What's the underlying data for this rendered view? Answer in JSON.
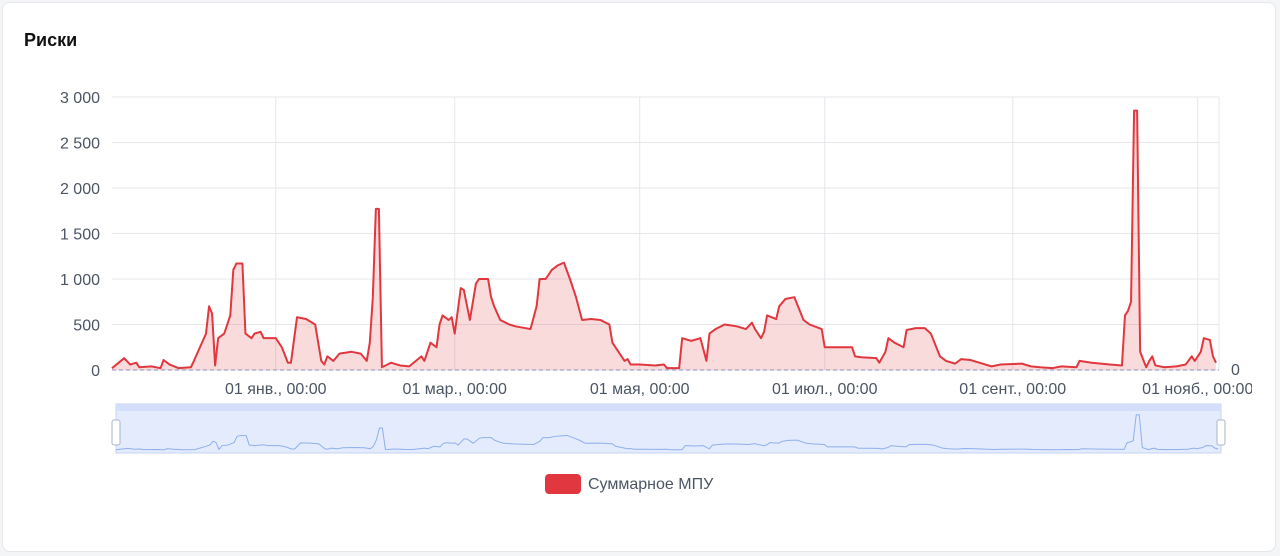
{
  "title": "Риски",
  "chart_data": {
    "type": "line",
    "series": [
      {
        "name": "Суммарное МПУ",
        "color": "#e0383e",
        "x": [
          0,
          4,
          6,
          8,
          9,
          13,
          16,
          17,
          19,
          22,
          26,
          27,
          29,
          31,
          32,
          33,
          34,
          35,
          37,
          39,
          40,
          41,
          43,
          44,
          46,
          47,
          49,
          50,
          54,
          56,
          58,
          59,
          61,
          64,
          67,
          69,
          70,
          71,
          73,
          75,
          79,
          82,
          84,
          85,
          86,
          87,
          88,
          89,
          92,
          95,
          98,
          102,
          103,
          105,
          107,
          108,
          109,
          111,
          112,
          113,
          115,
          116,
          118,
          120,
          121,
          124,
          125,
          126,
          128,
          131,
          133,
          138,
          140,
          141,
          143,
          145,
          147,
          149,
          151,
          153,
          155,
          158,
          161,
          164,
          165,
          167,
          169,
          170,
          171,
          174,
          179,
          182,
          183,
          187,
          188,
          191,
          194,
          196,
          197,
          199,
          202,
          206,
          209,
          211,
          212,
          214,
          215,
          216,
          219,
          220,
          222,
          225,
          228,
          230,
          234,
          235,
          244,
          245,
          247,
          252,
          253,
          255,
          256,
          258,
          261,
          262,
          265,
          268,
          270,
          273,
          275,
          278,
          280,
          283,
          286,
          290,
          293,
          300,
          303,
          306,
          310,
          313,
          318,
          319,
          323,
          326,
          329,
          333,
          334,
          335,
          336,
          337,
          338,
          339,
          341,
          342,
          343,
          344,
          347,
          351,
          354,
          356,
          357,
          359,
          360,
          362,
          363,
          364
        ],
        "values": [
          20,
          130,
          60,
          80,
          30,
          40,
          20,
          110,
          60,
          20,
          30,
          100,
          250,
          400,
          700,
          620,
          50,
          350,
          400,
          600,
          1100,
          1170,
          1170,
          400,
          350,
          400,
          420,
          350,
          350,
          250,
          80,
          80,
          580,
          560,
          500,
          100,
          60,
          150,
          100,
          180,
          200,
          180,
          100,
          300,
          800,
          1770,
          1770,
          30,
          80,
          50,
          40,
          150,
          100,
          300,
          250,
          500,
          600,
          550,
          580,
          400,
          900,
          880,
          550,
          950,
          1000,
          1000,
          800,
          700,
          550,
          500,
          480,
          450,
          700,
          1000,
          1000,
          1100,
          1150,
          1180,
          1000,
          800,
          550,
          560,
          550,
          500,
          300,
          200,
          100,
          120,
          60,
          60,
          50,
          60,
          20,
          20,
          350,
          320,
          350,
          100,
          400,
          450,
          500,
          480,
          450,
          520,
          450,
          350,
          420,
          600,
          560,
          700,
          780,
          800,
          550,
          500,
          450,
          250,
          250,
          150,
          140,
          130,
          80,
          200,
          350,
          300,
          250,
          440,
          460,
          460,
          400,
          150,
          100,
          70,
          120,
          110,
          80,
          40,
          60,
          70,
          40,
          30,
          20,
          40,
          30,
          100,
          80,
          70,
          60,
          50,
          600,
          650,
          750,
          2850,
          2850,
          200,
          30,
          100,
          150,
          50,
          30,
          40,
          60,
          150,
          100,
          200,
          350,
          330,
          150,
          80
        ]
      }
    ],
    "xlim": [
      0,
      365
    ],
    "xticks": [
      {
        "value": 54,
        "label": "01 янв., 00:00"
      },
      {
        "value": 113,
        "label": "01 мар., 00:00"
      },
      {
        "value": 174,
        "label": "01 мая, 00:00"
      },
      {
        "value": 235,
        "label": "01 июл., 00:00"
      },
      {
        "value": 297,
        "label": "01 сент., 00:00"
      },
      {
        "value": 358,
        "label": "01 нояб., 00:00"
      }
    ],
    "ylim": [
      0,
      3000
    ],
    "yticks": [
      0,
      500,
      {
        "value": 1000,
        "label": "1 000"
      },
      {
        "value": 1500,
        "label": "1 500"
      },
      {
        "value": 2000,
        "label": "2 000"
      },
      {
        "value": 2500,
        "label": "2 500"
      },
      {
        "value": 3000,
        "label": "3 000"
      }
    ],
    "mark_line": 0,
    "grid": true,
    "legend": "bottom"
  }
}
